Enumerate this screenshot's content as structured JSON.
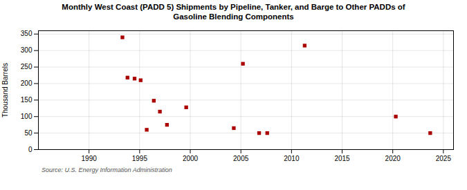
{
  "chart_data": {
    "type": "scatter",
    "title": "Monthly West Coast (PADD 5) Shipments by Pipeline, Tanker, and Barge to Other PADDs of\nGasoline Blending Components",
    "ylabel": "Thousand Barrels",
    "annotations": [
      "Source: U.S. Energy Information Administration"
    ],
    "x": [
      1993.3,
      1993.8,
      1994.5,
      1995.1,
      1995.7,
      1996.4,
      1997.0,
      1997.7,
      1999.6,
      2004.3,
      2005.2,
      2006.8,
      2007.6,
      2011.3,
      2020.3,
      2023.7
    ],
    "values": [
      340,
      218,
      215,
      210,
      60,
      148,
      115,
      75,
      128,
      65,
      260,
      50,
      50,
      315,
      100,
      50
    ],
    "color": "#aa0000",
    "marker": "square",
    "xlim": [
      1985,
      2026
    ],
    "ylim": [
      0,
      360
    ],
    "xticks": [
      1990,
      1995,
      2000,
      2005,
      2010,
      2015,
      2020,
      2025
    ],
    "yticks": [
      0,
      50,
      100,
      150,
      200,
      250,
      300,
      350
    ],
    "grid": true
  }
}
